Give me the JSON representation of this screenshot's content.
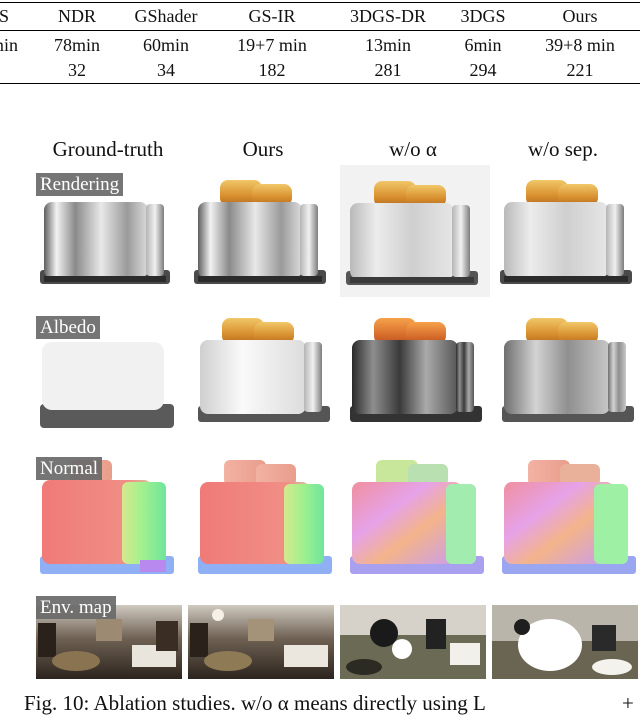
{
  "table": {
    "header": [
      "S",
      "NDR",
      "GShader",
      "GS-IR",
      "3DGS-DR",
      "3DGS",
      "Ours"
    ],
    "rows": [
      [
        "min",
        "78min",
        "60min",
        "19+7 min",
        "13min",
        "6min",
        "39+8 min"
      ],
      [
        "",
        "32",
        "34",
        "182",
        "281",
        "294",
        "221"
      ]
    ]
  },
  "figure": {
    "columns": [
      "Ground-truth",
      "Ours",
      "w/o α",
      "w/o sep."
    ],
    "rows": [
      "Rendering",
      "Albedo",
      "Normal",
      "Env. map"
    ]
  },
  "caption": "Fig. 10: Ablation studies. w/o α means directly using L",
  "caption_tail": "+"
}
